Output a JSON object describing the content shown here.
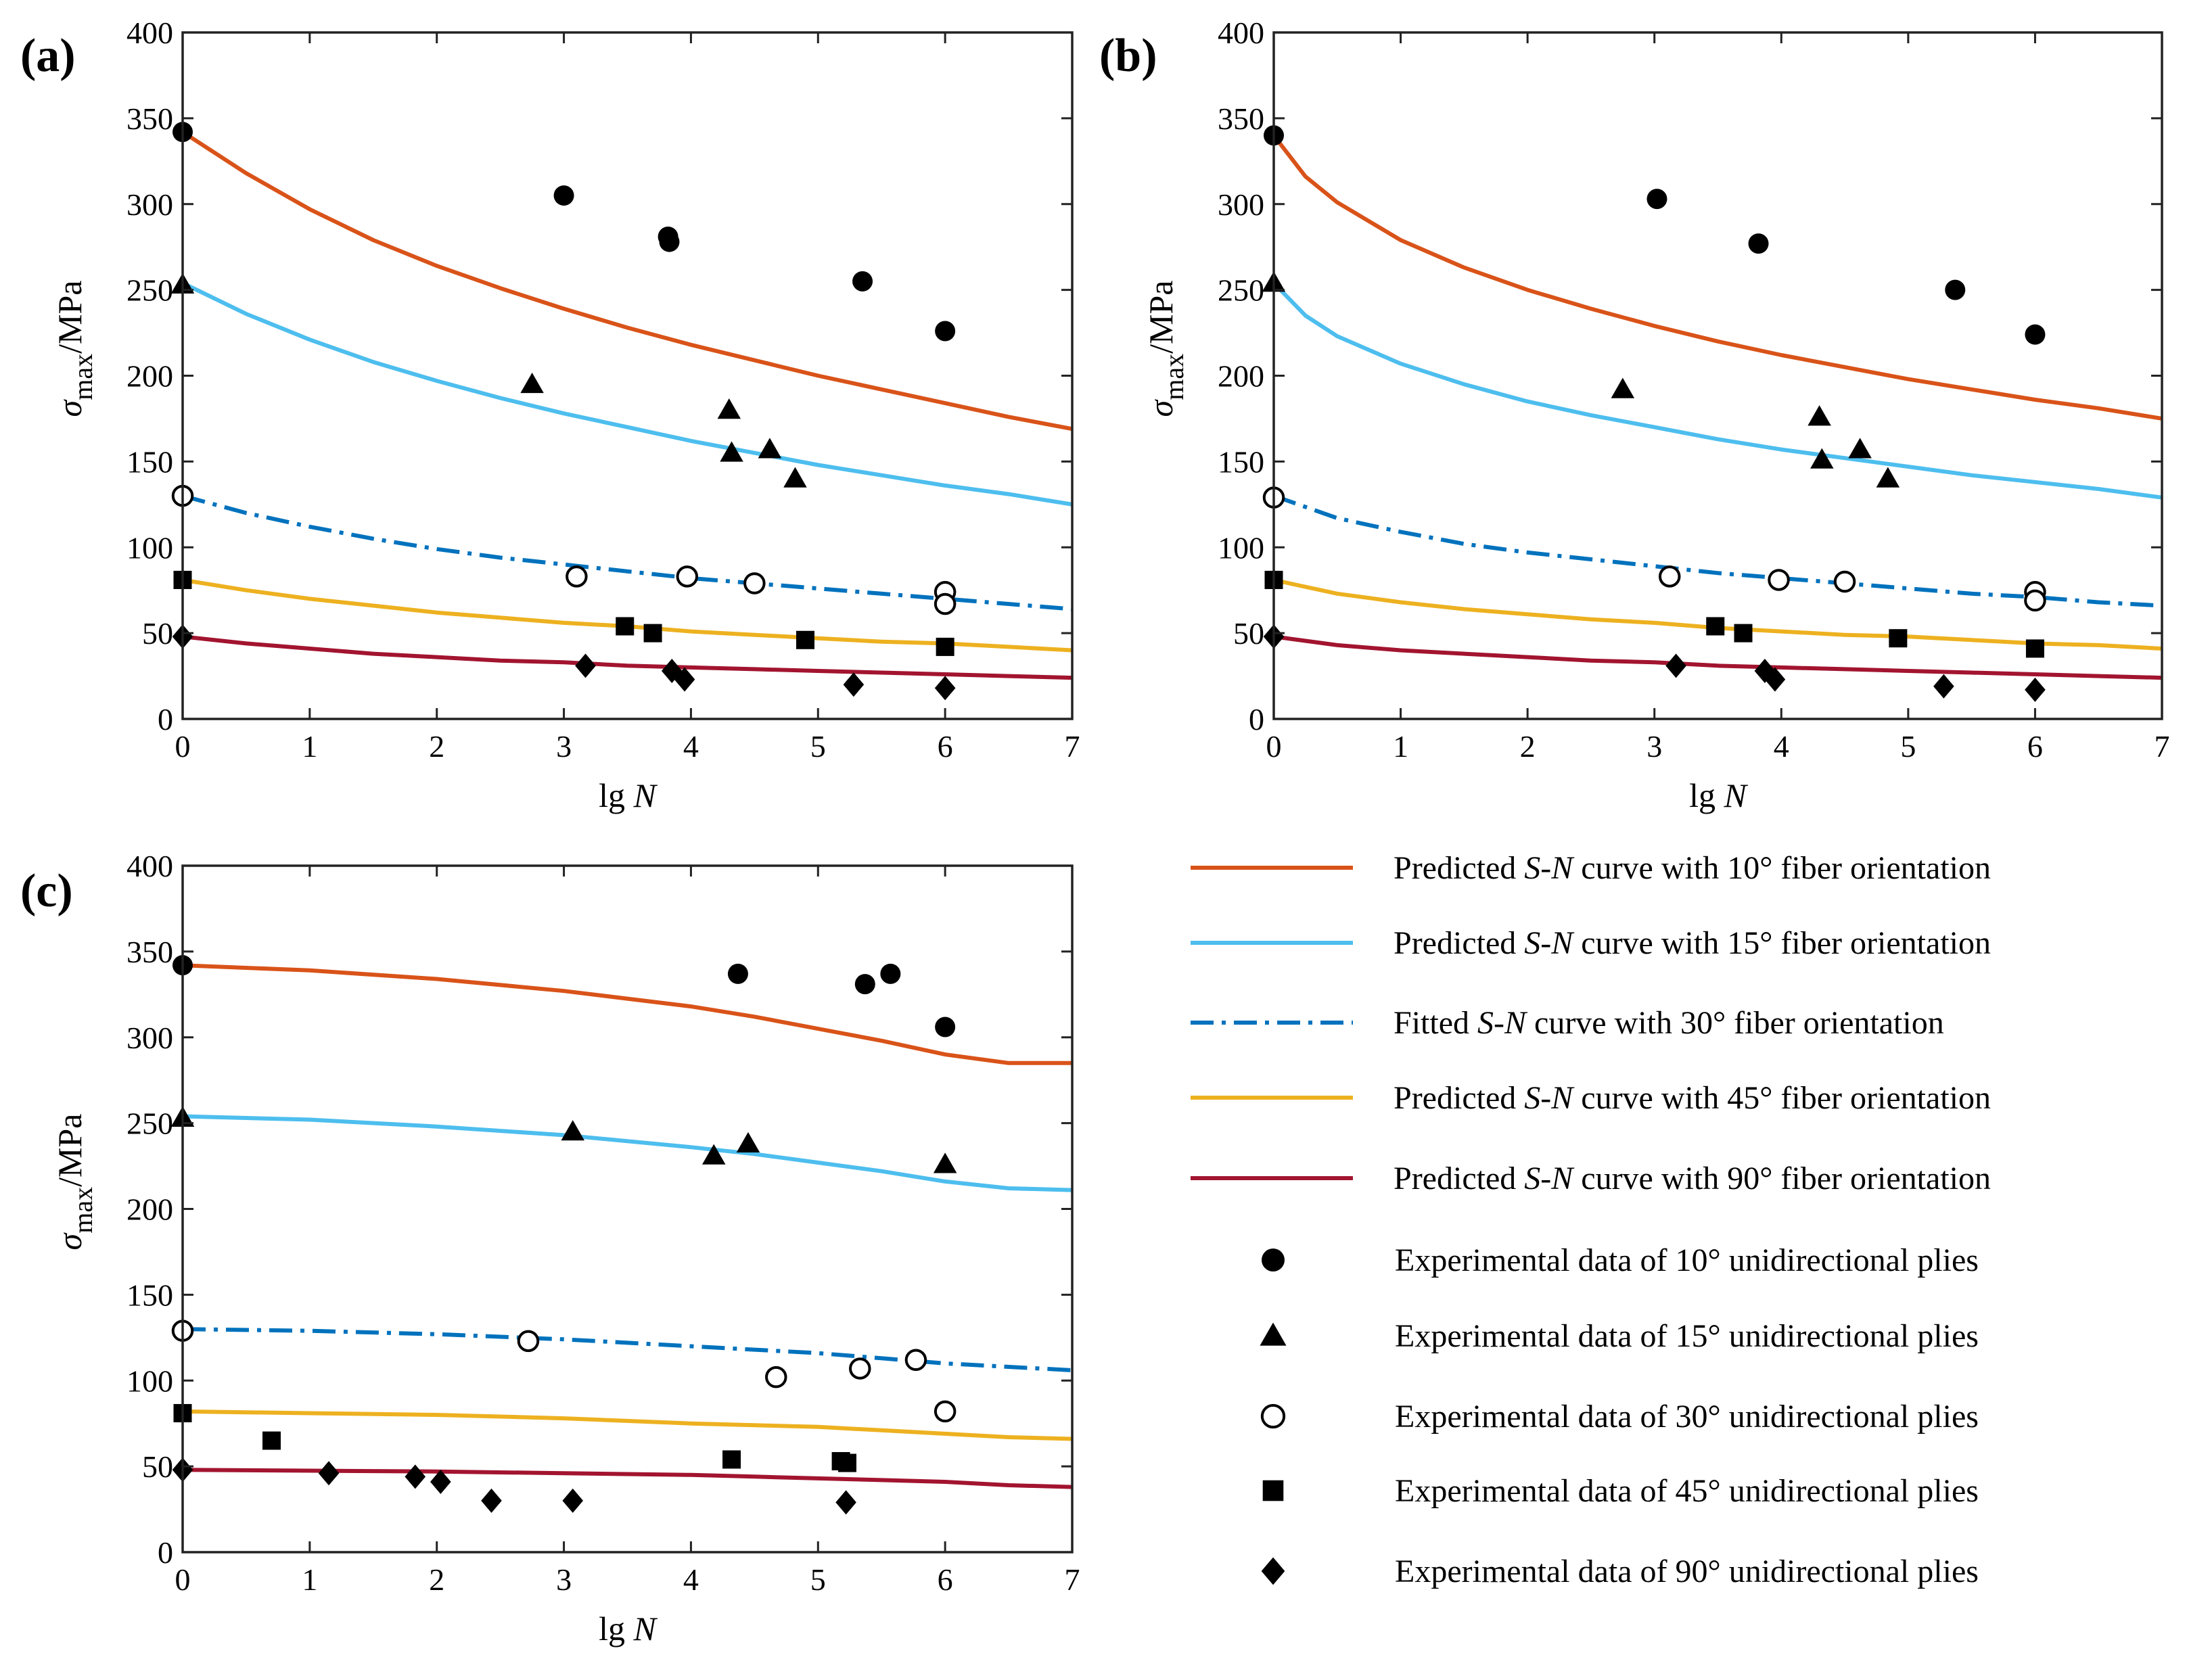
{
  "panel_labels": [
    "(a)",
    "(b)",
    "(c)"
  ],
  "axis": {
    "xlabel_prefix": "lg ",
    "xlabel_var": "N",
    "ylabel_sym": "σ",
    "ylabel_sub": "max",
    "ylabel_unit": "/MPa"
  },
  "legend": {
    "curves": [
      {
        "pre": "Predicted ",
        "it": "S",
        "dash": "-",
        "it2": "N",
        "post": " curve with 10° fiber orientation",
        "color": "#d95319",
        "style": "solid"
      },
      {
        "pre": "Predicted ",
        "it": "S",
        "dash": "-",
        "it2": "N",
        "post": " curve with 15° fiber orientation",
        "color": "#4dbeee",
        "style": "solid"
      },
      {
        "pre": "Fitted ",
        "it": "S",
        "dash": "-",
        "it2": "N",
        "post": " curve with 30° fiber orientation",
        "color": "#0072bd",
        "style": "dashdot"
      },
      {
        "pre": "Predicted ",
        "it": "S",
        "dash": "-",
        "it2": "N",
        "post": " curve with 45° fiber orientation",
        "color": "#edb120",
        "style": "solid"
      },
      {
        "pre": "Predicted ",
        "it": "S",
        "dash": "-",
        "it2": "N",
        "post": " curve with 90° fiber orientation",
        "color": "#a2142f",
        "style": "solid"
      }
    ],
    "markers": [
      {
        "label": "Experimental data of  10° unidirectional plies",
        "marker": "circle"
      },
      {
        "label": "Experimental data of  15° unidirectional plies",
        "marker": "triangle"
      },
      {
        "label": "Experimental data of  30° unidirectional plies",
        "marker": "open-circle"
      },
      {
        "label": "Experimental data of  45° unidirectional plies",
        "marker": "square"
      },
      {
        "label": "Experimental data of  90° unidirectional plies",
        "marker": "diamond"
      }
    ]
  },
  "chart_data": [
    {
      "type": "line+scatter",
      "panel": "(a)",
      "xlabel": "lg N",
      "ylabel": "σmax/MPa",
      "xlim": [
        0,
        7
      ],
      "ylim": [
        0,
        400
      ],
      "xticks": [
        0,
        1,
        2,
        3,
        4,
        5,
        6,
        7
      ],
      "yticks": [
        0,
        50,
        100,
        150,
        200,
        250,
        300,
        350,
        400
      ],
      "series": [
        {
          "name": "Predicted S-N curve with 10° fiber orientation",
          "color": "#d95319",
          "style": "solid",
          "x": [
            0,
            0.5,
            1,
            1.5,
            2,
            2.5,
            3,
            3.5,
            4,
            4.5,
            5,
            5.5,
            6,
            6.5,
            7
          ],
          "y": [
            342,
            318,
            297,
            279,
            264,
            251,
            239,
            228,
            218,
            209,
            200,
            192,
            184,
            176,
            169
          ]
        },
        {
          "name": "Predicted S-N curve with 15° fiber orientation",
          "color": "#4dbeee",
          "style": "solid",
          "x": [
            0,
            0.5,
            1,
            1.5,
            2,
            2.5,
            3,
            3.5,
            4,
            4.5,
            5,
            5.5,
            6,
            6.5,
            7
          ],
          "y": [
            254,
            236,
            221,
            208,
            197,
            187,
            178,
            170,
            162,
            155,
            148,
            142,
            136,
            131,
            125
          ]
        },
        {
          "name": "Fitted S-N curve with 30° fiber orientation",
          "color": "#0072bd",
          "style": "dashdot",
          "x": [
            0,
            0.5,
            1,
            1.5,
            2,
            2.5,
            3,
            3.5,
            4,
            4.5,
            5,
            5.5,
            6,
            6.5,
            7
          ],
          "y": [
            130,
            120,
            112,
            105,
            99,
            94,
            90,
            86,
            82,
            79,
            76,
            73,
            70,
            67,
            64
          ]
        },
        {
          "name": "Predicted S-N curve with 45° fiber orientation",
          "color": "#edb120",
          "style": "solid",
          "x": [
            0,
            0.5,
            1,
            1.5,
            2,
            2.5,
            3,
            3.5,
            4,
            4.5,
            5,
            5.5,
            6,
            6.5,
            7
          ],
          "y": [
            81,
            75,
            70,
            66,
            62,
            59,
            56,
            54,
            51,
            49,
            47,
            45,
            44,
            42,
            40
          ]
        },
        {
          "name": "Predicted S-N curve with 90° fiber orientation",
          "color": "#a2142f",
          "style": "solid",
          "x": [
            0,
            0.5,
            1,
            1.5,
            2,
            2.5,
            3,
            3.5,
            4,
            4.5,
            5,
            5.5,
            6,
            6.5,
            7
          ],
          "y": [
            48,
            44,
            41,
            38,
            36,
            34,
            33,
            31,
            30,
            29,
            28,
            27,
            26,
            25,
            24
          ]
        }
      ],
      "scatter": [
        {
          "name": "Experimental data of 10° unidirectional plies",
          "marker": "circle",
          "x": [
            0,
            3,
            3.82,
            3.83,
            5.35,
            6
          ],
          "y": [
            342,
            305,
            281,
            278,
            255,
            226
          ]
        },
        {
          "name": "Experimental data of 15° unidirectional plies",
          "marker": "triangle",
          "x": [
            0,
            2.75,
            4.3,
            4.32,
            4.62,
            4.82
          ],
          "y": [
            253,
            195,
            180,
            155,
            157,
            140
          ]
        },
        {
          "name": "Experimental data of 30° unidirectional plies",
          "marker": "open-circle",
          "x": [
            0,
            3.1,
            3.97,
            4.5,
            6,
            6
          ],
          "y": [
            130,
            83,
            83,
            79,
            74,
            67
          ]
        },
        {
          "name": "Experimental data of 45° unidirectional plies",
          "marker": "square",
          "x": [
            0,
            3.48,
            3.7,
            4.9,
            6
          ],
          "y": [
            81,
            54,
            50,
            46,
            42
          ]
        },
        {
          "name": "Experimental data of 90° unidirectional plies",
          "marker": "diamond",
          "x": [
            0,
            3.17,
            3.85,
            3.95,
            5.28,
            6
          ],
          "y": [
            48,
            31,
            28,
            23,
            20,
            18
          ]
        }
      ]
    },
    {
      "type": "line+scatter",
      "panel": "(b)",
      "xlabel": "lg N",
      "ylabel": "σmax/MPa",
      "xlim": [
        0,
        7
      ],
      "ylim": [
        0,
        400
      ],
      "xticks": [
        0,
        1,
        2,
        3,
        4,
        5,
        6,
        7
      ],
      "yticks": [
        0,
        50,
        100,
        150,
        200,
        250,
        300,
        350,
        400
      ],
      "series": [
        {
          "name": "Predicted S-N curve with 10° fiber orientation",
          "color": "#d95319",
          "style": "solid",
          "x": [
            0,
            0.25,
            0.5,
            1,
            1.5,
            2,
            2.5,
            3,
            3.5,
            4,
            4.5,
            5,
            5.5,
            6,
            6.5,
            7
          ],
          "y": [
            340,
            316,
            301,
            279,
            263,
            250,
            239,
            229,
            220,
            212,
            205,
            198,
            192,
            186,
            181,
            175
          ]
        },
        {
          "name": "Predicted S-N curve with 15° fiber orientation",
          "color": "#4dbeee",
          "style": "solid",
          "x": [
            0,
            0.25,
            0.5,
            1,
            1.5,
            2,
            2.5,
            3,
            3.5,
            4,
            4.5,
            5,
            5.5,
            6,
            6.5,
            7
          ],
          "y": [
            254,
            235,
            223,
            207,
            195,
            185,
            177,
            170,
            163,
            157,
            152,
            147,
            142,
            138,
            134,
            129
          ]
        },
        {
          "name": "Fitted S-N curve with 30° fiber orientation",
          "color": "#0072bd",
          "style": "dashdot",
          "x": [
            0,
            0.5,
            1,
            1.5,
            2,
            2.5,
            3,
            3.5,
            4,
            4.5,
            5,
            5.5,
            6,
            6.5,
            7
          ],
          "y": [
            130,
            117,
            109,
            102,
            97,
            93,
            89,
            85,
            82,
            79,
            76,
            73,
            71,
            68,
            66
          ]
        },
        {
          "name": "Predicted S-N curve with 45° fiber orientation",
          "color": "#edb120",
          "style": "solid",
          "x": [
            0,
            0.5,
            1,
            1.5,
            2,
            2.5,
            3,
            3.5,
            4,
            4.5,
            5,
            5.5,
            6,
            6.5,
            7
          ],
          "y": [
            81,
            73,
            68,
            64,
            61,
            58,
            56,
            53,
            51,
            49,
            48,
            46,
            44,
            43,
            41
          ]
        },
        {
          "name": "Predicted S-N curve with 90° fiber orientation",
          "color": "#a2142f",
          "style": "solid",
          "x": [
            0,
            0.5,
            1,
            1.5,
            2,
            2.5,
            3,
            3.5,
            4,
            4.5,
            5,
            5.5,
            6,
            6.5,
            7
          ],
          "y": [
            48,
            43,
            40,
            38,
            36,
            34,
            33,
            31,
            30,
            29,
            28,
            27,
            26,
            25,
            24
          ]
        }
      ],
      "scatter": [
        {
          "name": "Experimental data of 10° unidirectional plies",
          "marker": "circle",
          "x": [
            0,
            3.02,
            3.82,
            5.37,
            6
          ],
          "y": [
            340,
            303,
            277,
            250,
            224
          ]
        },
        {
          "name": "Experimental data of 15° unidirectional plies",
          "marker": "triangle",
          "x": [
            0,
            2.75,
            4.3,
            4.32,
            4.62,
            4.84
          ],
          "y": [
            254,
            192,
            176,
            151,
            157,
            140
          ]
        },
        {
          "name": "Experimental data of 30° unidirectional plies",
          "marker": "open-circle",
          "x": [
            0,
            3.12,
            3.98,
            4.5,
            6,
            6
          ],
          "y": [
            129,
            83,
            81,
            80,
            74,
            69
          ]
        },
        {
          "name": "Experimental data of 45° unidirectional plies",
          "marker": "square",
          "x": [
            0,
            3.48,
            3.7,
            4.92,
            6
          ],
          "y": [
            81,
            54,
            50,
            47,
            41
          ]
        },
        {
          "name": "Experimental data of 90° unidirectional plies",
          "marker": "diamond",
          "x": [
            0,
            3.17,
            3.87,
            3.95,
            5.28,
            6
          ],
          "y": [
            48,
            31,
            28,
            23,
            19,
            17
          ]
        }
      ]
    },
    {
      "type": "line+scatter",
      "panel": "(c)",
      "xlabel": "lg N",
      "ylabel": "σmax/MPa",
      "xlim": [
        0,
        7
      ],
      "ylim": [
        0,
        400
      ],
      "xticks": [
        0,
        1,
        2,
        3,
        4,
        5,
        6,
        7
      ],
      "yticks": [
        0,
        50,
        100,
        150,
        200,
        250,
        300,
        350,
        400
      ],
      "series": [
        {
          "name": "Predicted S-N curve with 10° fiber orientation",
          "color": "#d95319",
          "style": "solid",
          "x": [
            0,
            1,
            2,
            3,
            4,
            4.5,
            5,
            5.5,
            6,
            6.5,
            7
          ],
          "y": [
            342,
            339,
            334,
            327,
            318,
            312,
            305,
            298,
            290,
            285,
            285
          ]
        },
        {
          "name": "Predicted S-N curve with 15° fiber orientation",
          "color": "#4dbeee",
          "style": "solid",
          "x": [
            0,
            1,
            2,
            3,
            4,
            4.5,
            5,
            5.5,
            6,
            6.5,
            7
          ],
          "y": [
            254,
            252,
            248,
            243,
            236,
            232,
            227,
            222,
            216,
            212,
            211
          ]
        },
        {
          "name": "Fitted S-N curve with 30° fiber orientation",
          "color": "#0072bd",
          "style": "dashdot",
          "x": [
            0,
            1,
            2,
            3,
            4,
            4.5,
            5,
            5.5,
            6,
            6.5,
            7
          ],
          "y": [
            130,
            129,
            127,
            124,
            120,
            118,
            116,
            113,
            110,
            108,
            106
          ]
        },
        {
          "name": "Predicted S-N curve with 45° fiber orientation",
          "color": "#edb120",
          "style": "solid",
          "x": [
            0,
            1,
            2,
            3,
            4,
            4.5,
            5,
            5.5,
            6,
            6.5,
            7
          ],
          "y": [
            82,
            81,
            80,
            78,
            75,
            74,
            73,
            71,
            69,
            67,
            66
          ]
        },
        {
          "name": "Predicted S-N curve with 90° fiber orientation",
          "color": "#a2142f",
          "style": "solid",
          "x": [
            0,
            1,
            2,
            3,
            4,
            4.5,
            5,
            5.5,
            6,
            6.5,
            7
          ],
          "y": [
            48,
            47.5,
            47,
            46,
            45,
            44,
            43,
            42,
            41,
            39,
            38
          ]
        }
      ],
      "scatter": [
        {
          "name": "Experimental data of 10° unidirectional plies",
          "marker": "circle",
          "x": [
            0,
            4.37,
            5.37,
            5.57,
            6
          ],
          "y": [
            342,
            337,
            331,
            337,
            306
          ]
        },
        {
          "name": "Experimental data of 15° unidirectional plies",
          "marker": "triangle",
          "x": [
            0,
            3.07,
            4.18,
            4.45,
            6
          ],
          "y": [
            253,
            245,
            231,
            238,
            226
          ]
        },
        {
          "name": "Experimental data of 30° unidirectional plies",
          "marker": "open-circle",
          "x": [
            0,
            2.72,
            4.67,
            5.33,
            5.77,
            6
          ],
          "y": [
            129,
            123,
            102,
            107,
            112,
            82
          ]
        },
        {
          "name": "Experimental data of 45° unidirectional plies",
          "marker": "square",
          "x": [
            0,
            0.7,
            4.32,
            5.18,
            5.23
          ],
          "y": [
            81,
            65,
            54,
            53,
            52
          ]
        },
        {
          "name": "Experimental data of 90° unidirectional plies",
          "marker": "diamond",
          "x": [
            0,
            1.15,
            1.83,
            2.03,
            2.43,
            3.07,
            5.22
          ],
          "y": [
            48,
            46,
            44,
            41,
            30,
            30,
            29
          ]
        }
      ]
    }
  ]
}
